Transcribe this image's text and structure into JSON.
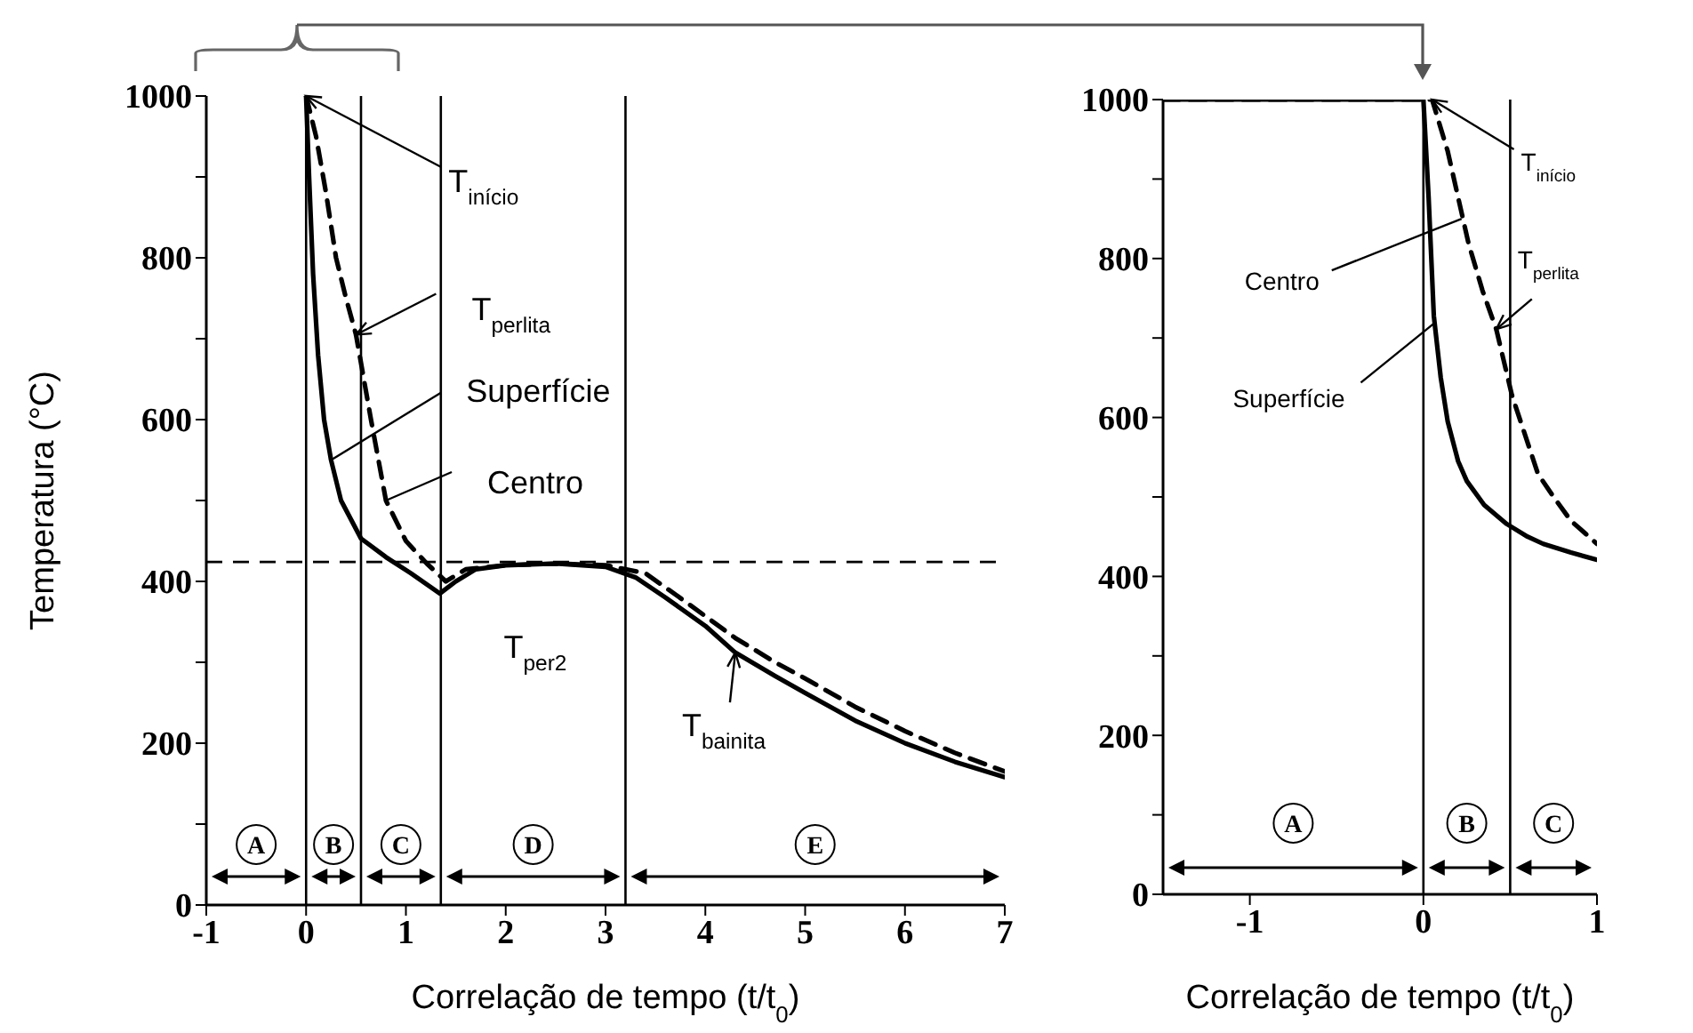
{
  "chart_data": [
    {
      "type": "line",
      "xlabel": "Correlação de tempo (t/t$_{0}$)",
      "ylabel": "Temperatura (°C)",
      "series": [
        {
          "color": "#000000",
          "line_style": "solid",
          "x": [
            0,
            0.03,
            0.07,
            0.12,
            0.18,
            0.25,
            0.35,
            0.55,
            0.8,
            1.05,
            1.34,
            1.5,
            1.7,
            2.0,
            2.5,
            3.0,
            3.3,
            3.6,
            4.0,
            4.3,
            4.7,
            5.0,
            5.5,
            6.0,
            6.5,
            7.0
          ],
          "values": [
            1000,
            900,
            780,
            680,
            600,
            550,
            500,
            453,
            430,
            410,
            385,
            400,
            415,
            420,
            422,
            418,
            405,
            380,
            345,
            312,
            283,
            262,
            228,
            200,
            177,
            158
          ]
        },
        {
          "color": "#000000",
          "line_style": "dashed",
          "x": [
            0,
            0.1,
            0.2,
            0.3,
            0.4,
            0.5,
            0.65,
            0.8,
            1.0,
            1.21,
            1.4,
            1.6,
            2.0,
            2.5,
            3.0,
            3.4,
            3.8,
            4.3,
            4.7,
            5.0,
            5.5,
            6.0,
            6.5,
            7.0
          ],
          "values": [
            1000,
            950,
            880,
            800,
            750,
            705,
            600,
            500,
            450,
            422,
            400,
            415,
            420,
            422,
            420,
            410,
            375,
            330,
            300,
            280,
            245,
            215,
            188,
            165
          ]
        }
      ],
      "xlim": [
        -1,
        7
      ],
      "xticks": [
        -1,
        0,
        1,
        2,
        3,
        4,
        5,
        6,
        7
      ],
      "ylim": [
        0,
        1000
      ],
      "yticks": [
        0,
        {
          "value": 100,
          "label": null
        },
        200,
        {
          "value": 300,
          "label": null
        },
        400,
        {
          "value": 500,
          "label": null
        },
        600,
        {
          "value": 700,
          "label": null
        },
        800,
        {
          "value": 900,
          "label": null
        },
        1000
      ],
      "ref_lines": [
        {
          "axis": "x",
          "value": 0
        },
        {
          "axis": "x",
          "value": 0.55
        },
        {
          "axis": "x",
          "value": 1.35
        },
        {
          "axis": "x",
          "value": 3.2
        },
        {
          "axis": "y",
          "value": 424,
          "line_style": "dashed"
        }
      ],
      "annotations": [
        {
          "text": "T$_{início}$",
          "x": 0,
          "y": 1000
        },
        {
          "text": "T$_{perlita}$",
          "x": 0.5,
          "y": 705
        },
        {
          "text": "Superfície",
          "x": 0.25,
          "y": 550
        },
        {
          "text": "Centro",
          "x": 0.8,
          "y": 500
        },
        "T$_{per2}$",
        {
          "text": "T$_{bainita}$",
          "x": 4.3,
          "y": 312
        },
        "A",
        "B",
        "C",
        "D",
        "E"
      ]
    },
    {
      "type": "line",
      "xlabel": "Correlação de tempo (t/t$_{0}$)",
      "series": [
        {
          "color": "#000000",
          "line_style": "solid",
          "x": [
            -1.5,
            0,
            0.03,
            0.06,
            0.1,
            0.14,
            0.2,
            0.25,
            0.35,
            0.48,
            0.6,
            0.69,
            0.85,
            1.0
          ],
          "values": [
            1000,
            1000,
            877,
            728,
            650,
            595,
            545,
            520,
            490,
            466,
            450,
            441,
            430,
            421
          ]
        },
        {
          "color": "#000000",
          "line_style": "dashed",
          "x": [
            -1.5,
            0,
            0.05,
            0.14,
            0.26,
            0.34,
            0.42,
            0.51,
            0.66,
            0.75,
            0.85,
            1.0
          ],
          "values": [
            1000,
            1000,
            1000,
            935,
            819,
            760,
            711,
            628,
            529,
            500,
            470,
            441
          ]
        }
      ],
      "xlim": [
        -1.5,
        1
      ],
      "xticks": [
        -1,
        0,
        1
      ],
      "ylim": [
        0,
        1000
      ],
      "yticks": [
        0,
        {
          "value": 100,
          "label": null
        },
        200,
        {
          "value": 300,
          "label": null
        },
        400,
        {
          "value": 500,
          "label": null
        },
        600,
        {
          "value": 700,
          "label": null
        },
        800,
        {
          "value": 900,
          "label": null
        },
        1000
      ],
      "ref_lines": [
        {
          "axis": "x",
          "value": 0
        },
        {
          "axis": "x",
          "value": 0.5
        }
      ],
      "annotations": [
        {
          "text": "T$_{início}$",
          "x": 0.05,
          "y": 1000
        },
        {
          "text": "T$_{perlita}$",
          "x": 0.42,
          "y": 711
        },
        {
          "text": "Centro",
          "x": 0.22,
          "y": 850
        },
        {
          "text": "Superfície",
          "x": 0.07,
          "y": 720
        },
        "A",
        "B",
        "C"
      ]
    }
  ]
}
